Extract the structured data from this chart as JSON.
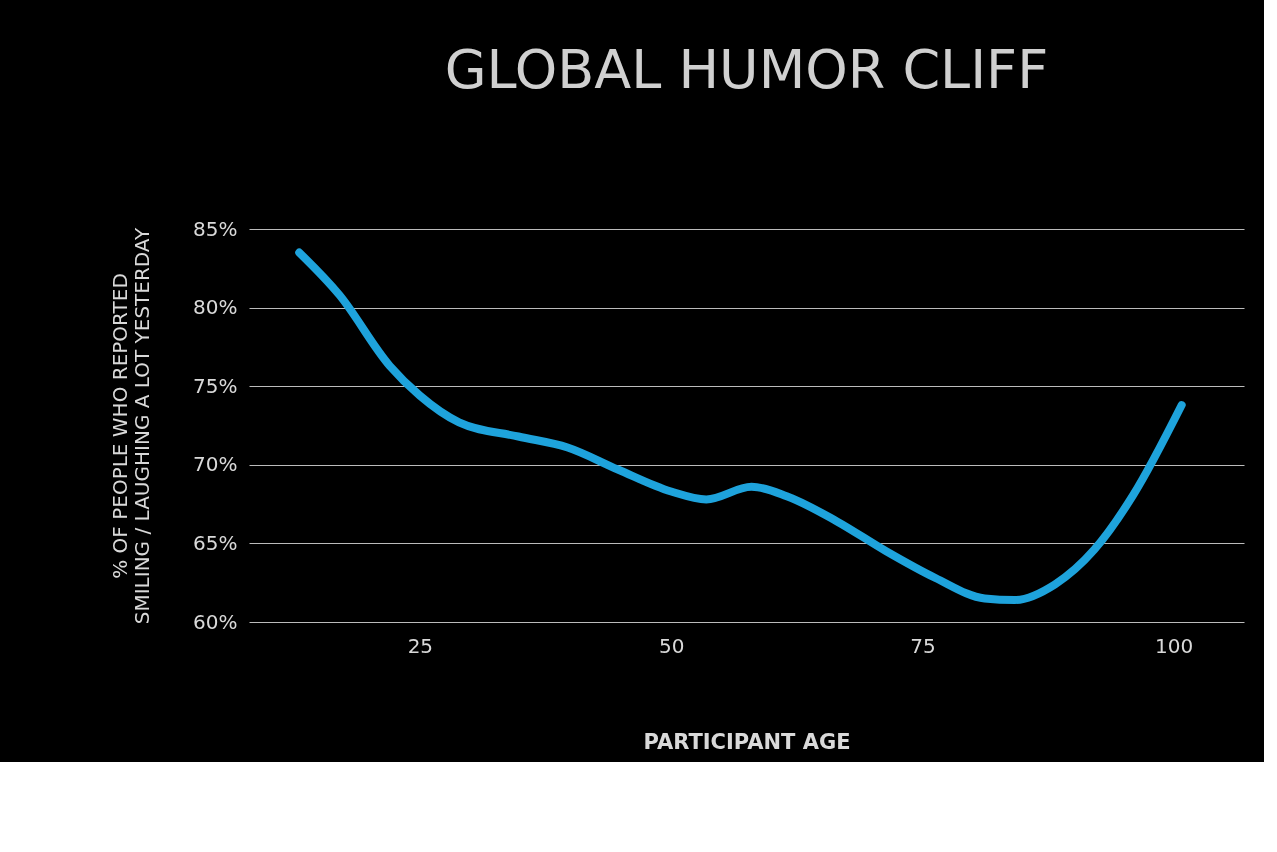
{
  "chart_data": {
    "type": "line",
    "title": "GLOBAL HUMOR CLIFF",
    "xlabel": "PARTICIPANT AGE",
    "ylabel": "% OF PEOPLE WHO REPORTED\nSMILING / LAUGHING A LOT YESTERDAY",
    "x": [
      13,
      17,
      22,
      25,
      28.9,
      34.8,
      39.7,
      44.7,
      50,
      53.5,
      58,
      61.5,
      66.5,
      71.4,
      76.3,
      81.2,
      84.2,
      88.2,
      92.1,
      96,
      100.8
    ],
    "series": [
      {
        "color": "#1ea3dc",
        "values": [
          83.5,
          80.8,
          76.3,
          74.4,
          72.7,
          71.8,
          71.1,
          69.7,
          68.3,
          67.8,
          68.6,
          68.0,
          66.4,
          64.5,
          62.8,
          61.5,
          61.4,
          62.4,
          64.6,
          68.1,
          73.8
        ]
      }
    ],
    "xlim": [
      8,
      107
    ],
    "xticks": [
      25,
      50,
      75,
      100
    ],
    "ylim": [
      60,
      85
    ],
    "yticks": [
      {
        "value": 60,
        "label": "60%"
      },
      {
        "value": 65,
        "label": "65%"
      },
      {
        "value": 70,
        "label": "70%"
      },
      {
        "value": 75,
        "label": "75%"
      },
      {
        "value": 80,
        "label": "80%"
      },
      {
        "value": 85,
        "label": "85%"
      }
    ],
    "grid": "y",
    "legend": false,
    "marker": "none",
    "line_style": "solid"
  }
}
